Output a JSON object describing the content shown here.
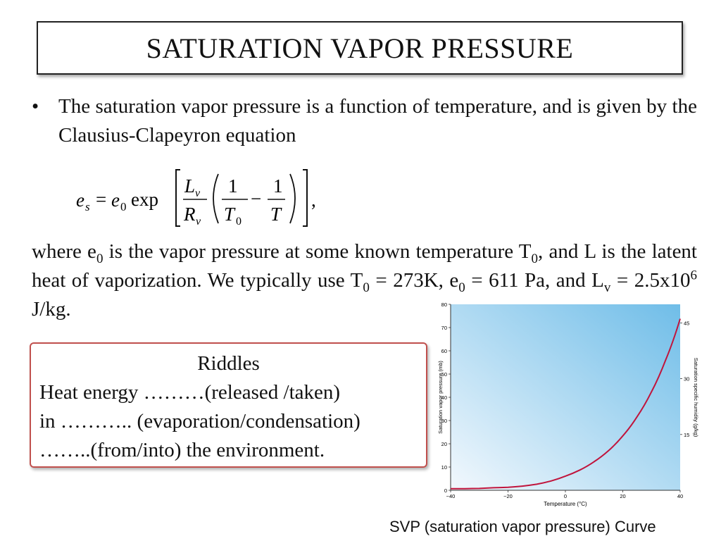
{
  "title": "SATURATION VAPOR PRESSURE",
  "bullet": {
    "symbol": "•",
    "text": "The saturation vapor pressure is a function of temperature, and is given by the Clausius-Clapeyron equation"
  },
  "equation": {
    "lhs": "e",
    "lhs_sub": "s",
    "eq": "=",
    "e0": "e",
    "e0_sub": "0",
    "exp": "exp",
    "L": "L",
    "L_sub": "v",
    "R": "R",
    "R_sub": "v",
    "one_a": "1",
    "T0": "T",
    "T0_sub": "0",
    "minus": "−",
    "one_b": "1",
    "T": "T",
    "comma": ","
  },
  "where": {
    "p1": "where e",
    "s1": "0",
    "p2": " is the vapor pressure at some known temperature T",
    "s2": "0",
    "p3": ", and L is the latent heat of vaporization. We typically use T",
    "s3": "0",
    "p4": " = 273K, e",
    "s4": "0",
    "p5": " = 611 Pa, and L",
    "s5": "v",
    "p6": " = 2.5x10",
    "sup6": "6",
    "p7": " J/kg."
  },
  "riddle": {
    "title": "Riddles",
    "lines": [
      "Heat energy ………(released /taken)",
      "in ……….. (evaporation/condensation)",
      "……..(from/into) the environment."
    ]
  },
  "caption": "SVP (saturation vapor pressure) Curve",
  "chart_data": {
    "type": "line",
    "xlabel": "Temperature (°C)",
    "ylabel": "Saturation vapor pressure (mb)",
    "y2label": "Saturation specific humidity (g/kg)",
    "xlim": [
      -40,
      40
    ],
    "ylim": [
      0,
      80
    ],
    "x_ticks": [
      "−40",
      "−20",
      "0",
      "20",
      "40"
    ],
    "x_tick_values": [
      -40,
      -20,
      0,
      20,
      40
    ],
    "y_ticks": [
      "0",
      "10",
      "20",
      "30",
      "40",
      "50",
      "60",
      "70",
      "80"
    ],
    "y_tick_values": [
      0,
      10,
      20,
      30,
      40,
      50,
      60,
      70,
      80
    ],
    "y2_ticks": [
      "15",
      "30",
      "45"
    ],
    "y2_tick_values": [
      15,
      30,
      45
    ],
    "y2_to_y_factor": 1.6,
    "grid": false,
    "line_color": "#c0143c",
    "background_gradient": [
      "#f2f8fd",
      "#6fbde8"
    ],
    "x": [
      -40,
      -35,
      -30,
      -25,
      -20,
      -15,
      -10,
      -5,
      0,
      5,
      10,
      15,
      20,
      25,
      30,
      35,
      40
    ],
    "values": [
      0.7,
      0.7,
      0.8,
      1.1,
      1.3,
      1.8,
      2.6,
      4.0,
      6.1,
      8.7,
      12.3,
      17.0,
      23.4,
      31.7,
      42.4,
      56.2,
      73.8
    ]
  },
  "colors": {
    "riddle_border": "#c0504d",
    "title_border": "#222222"
  }
}
